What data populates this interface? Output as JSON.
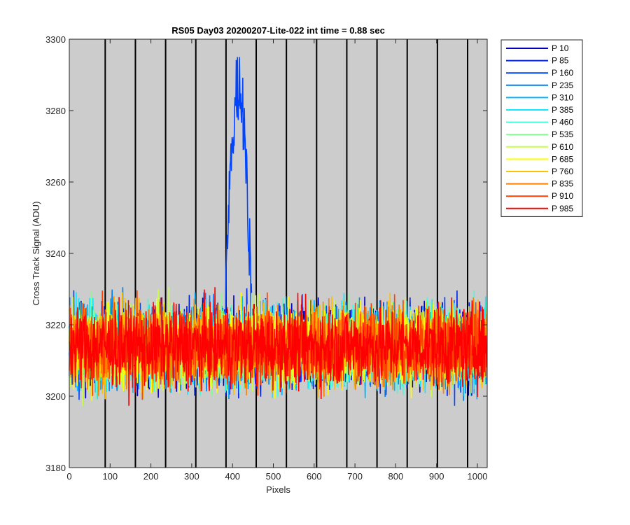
{
  "chart_data": {
    "type": "line",
    "title": "RS05 Day03 20200207-Lite-022 int time = 0.88 sec",
    "xlabel": "Pixels",
    "ylabel": "Cross Track Signal (ADU)",
    "xlim": [
      0,
      1024
    ],
    "ylim": [
      3180,
      3300
    ],
    "xticks": [
      0,
      100,
      200,
      300,
      400,
      500,
      600,
      700,
      800,
      900,
      1000
    ],
    "yticks": [
      3180,
      3200,
      3220,
      3240,
      3260,
      3280,
      3300
    ],
    "xtick_labels": [
      "0",
      "100",
      "200",
      "300",
      "400",
      "500",
      "600",
      "700",
      "800",
      "900",
      "1000"
    ],
    "ytick_labels": [
      "3180",
      "3200",
      "3220",
      "3240",
      "3260",
      "3280",
      "3300"
    ],
    "background": "#cccccc",
    "vertical_lines_x": [
      88,
      162,
      236,
      310,
      384,
      458,
      532,
      606,
      680,
      754,
      828,
      902,
      976
    ],
    "legend_position": "outside-right",
    "series": [
      {
        "name": "P 10",
        "color": "#0000be",
        "baseline": 3214,
        "noise": 9
      },
      {
        "name": "P 85",
        "color": "#0020e0",
        "baseline": 3214,
        "noise": 9
      },
      {
        "name": "P 160",
        "color": "#0044ff",
        "baseline": 3214,
        "noise": 9,
        "peak": {
          "center": 415,
          "width": 36,
          "max": 3295
        }
      },
      {
        "name": "P 235",
        "color": "#0080f0",
        "baseline": 3214,
        "noise": 9
      },
      {
        "name": "P 310",
        "color": "#00b4ff",
        "baseline": 3214,
        "noise": 9
      },
      {
        "name": "P 385",
        "color": "#10e8ff",
        "baseline": 3214,
        "noise": 9
      },
      {
        "name": "P 460",
        "color": "#40ffd8",
        "baseline": 3214,
        "noise": 9
      },
      {
        "name": "P 535",
        "color": "#80ff90",
        "baseline": 3214,
        "noise": 9
      },
      {
        "name": "P 610",
        "color": "#c8ff40",
        "baseline": 3214,
        "noise": 9
      },
      {
        "name": "P 685",
        "color": "#ffff00",
        "baseline": 3214,
        "noise": 9
      },
      {
        "name": "P 760",
        "color": "#ffc000",
        "baseline": 3214,
        "noise": 9
      },
      {
        "name": "P 835",
        "color": "#ff8000",
        "baseline": 3214,
        "noise": 9
      },
      {
        "name": "P 910",
        "color": "#ff4000",
        "baseline": 3214,
        "noise": 9
      },
      {
        "name": "P 985",
        "color": "#ff0000",
        "baseline": 3214,
        "noise": 9
      }
    ]
  }
}
